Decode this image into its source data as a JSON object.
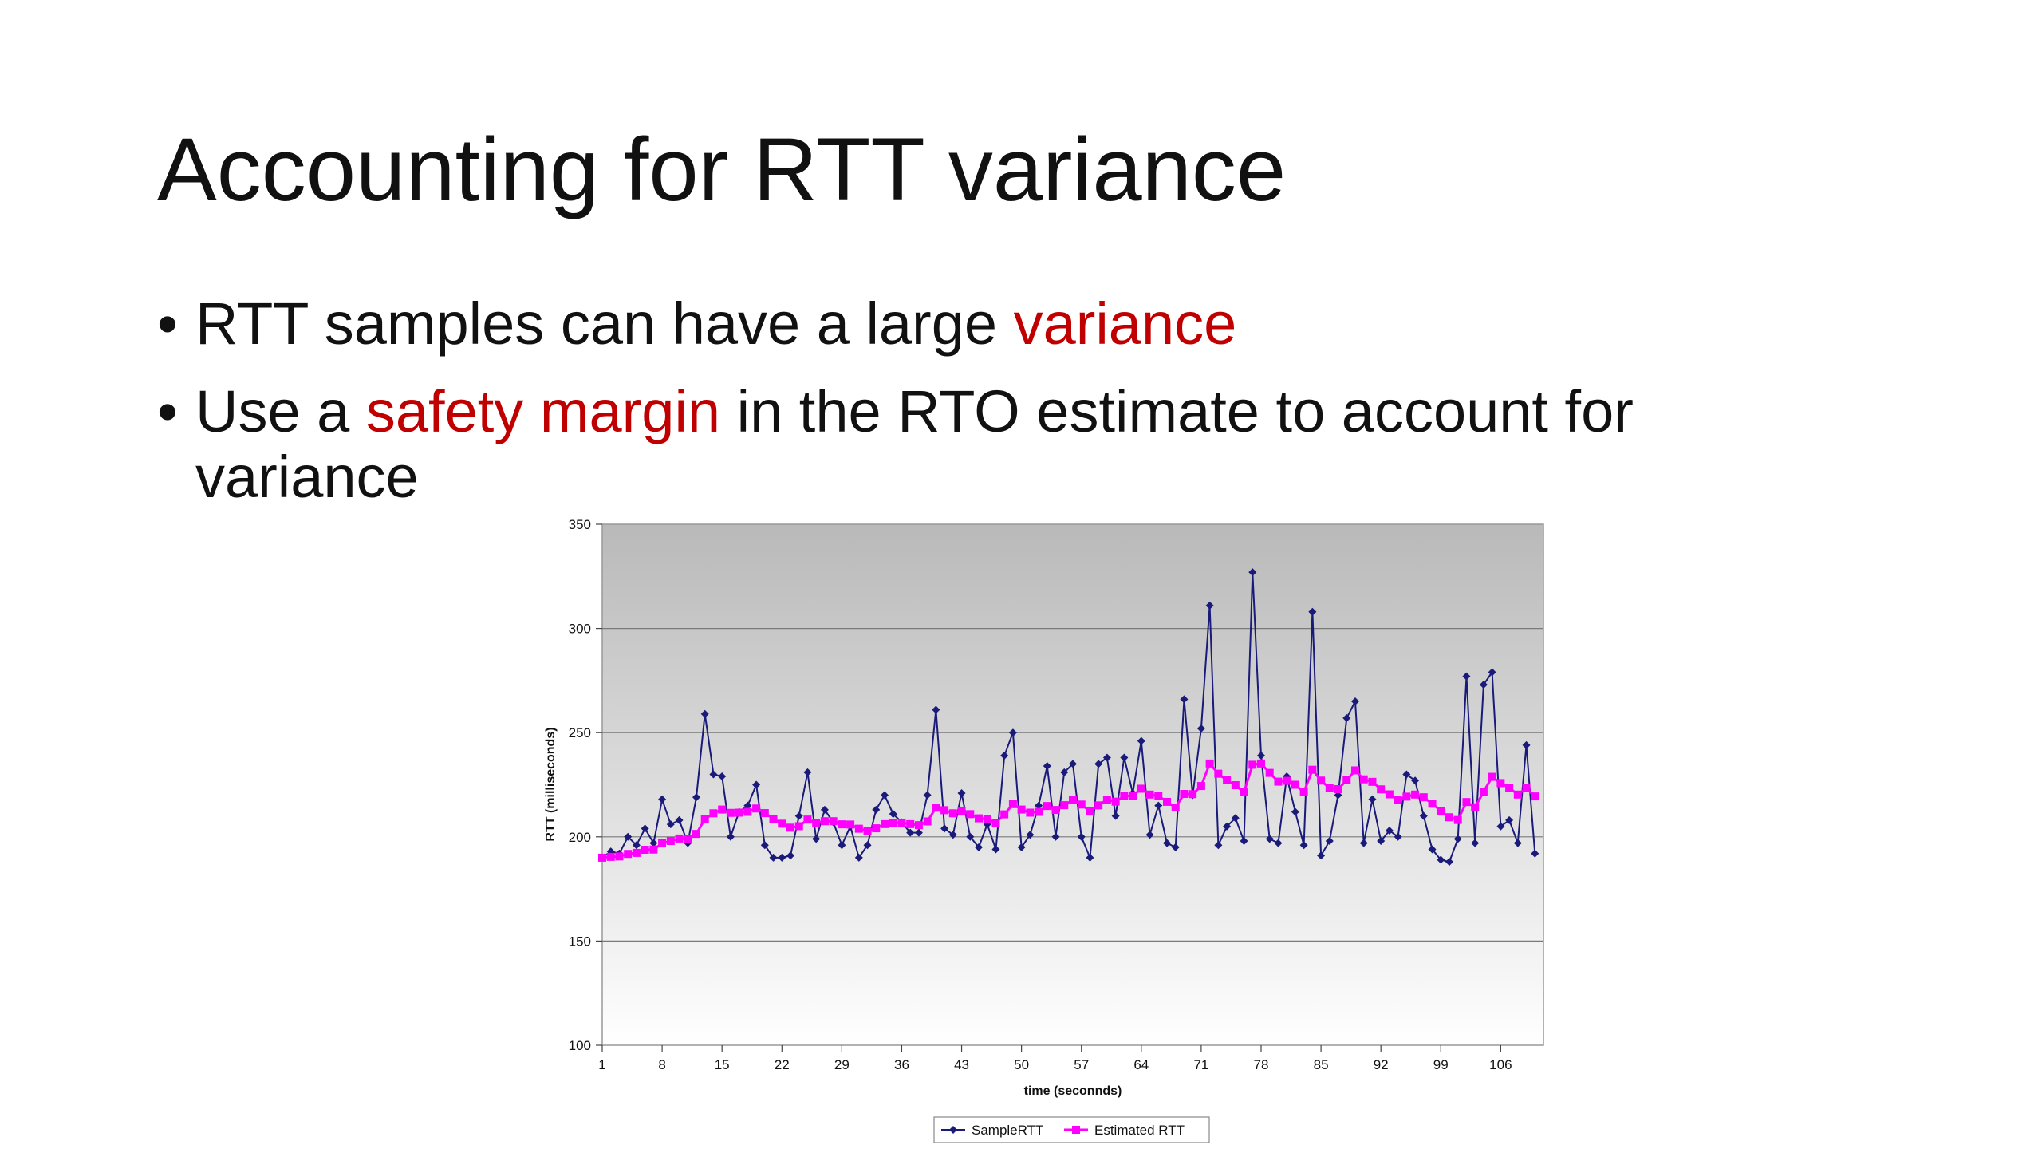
{
  "slide": {
    "title": "Accounting for RTT variance",
    "bullets": [
      {
        "before": "RTT samples can have a large ",
        "accent": "variance",
        "after": ""
      },
      {
        "before": "Use a ",
        "accent": "safety margin",
        "after": " in the RTO estimate to account for variance"
      }
    ]
  },
  "colors": {
    "accent": "#c00000",
    "sample_series": "#1a1a7a",
    "estimated_series": "#ff00ff"
  },
  "chart_data": {
    "type": "line",
    "title": "",
    "xlabel": "time (seconnds)",
    "ylabel": "RTT (milliseconds)",
    "ylim": [
      100,
      350
    ],
    "yticks": [
      100,
      150,
      200,
      250,
      300,
      350
    ],
    "xticks": [
      1,
      8,
      15,
      22,
      29,
      36,
      43,
      50,
      57,
      64,
      71,
      78,
      85,
      92,
      99,
      106
    ],
    "xrange": [
      1,
      111
    ],
    "legend_position": "bottom",
    "grid": true,
    "series": [
      {
        "name": "SampleRTT",
        "marker": "diamond",
        "values": [
          190,
          193,
          192,
          200,
          196,
          204,
          197,
          218,
          206,
          208,
          197,
          219,
          259,
          230,
          229,
          200,
          212,
          215,
          225,
          196,
          190,
          190,
          191,
          210,
          231,
          199,
          213,
          207,
          196,
          205,
          190,
          196,
          213,
          220,
          211,
          207,
          202,
          202,
          220,
          261,
          204,
          201,
          221,
          200,
          195,
          206,
          194,
          239,
          250,
          195,
          201,
          215,
          234,
          200,
          231,
          235,
          200,
          190,
          235,
          238,
          210,
          238,
          221,
          246,
          201,
          215,
          197,
          195,
          266,
          220,
          252,
          311,
          196,
          205,
          209,
          198,
          327,
          239,
          199,
          197,
          229,
          212,
          196,
          308,
          191,
          198,
          220,
          257,
          265,
          197,
          218,
          198,
          203,
          200,
          230,
          227,
          210,
          194,
          189,
          188,
          199,
          277,
          197,
          273,
          279,
          205,
          208,
          197,
          244,
          192
        ]
      },
      {
        "name": "Estimated RTT",
        "marker": "square",
        "values": [
          190,
          190.4,
          190.6,
          191.8,
          192.3,
          193.8,
          193.9,
          196.9,
          198.0,
          199.2,
          198.9,
          201.4,
          208.6,
          211.3,
          213.1,
          211.5,
          211.6,
          212.0,
          213.6,
          211.4,
          208.7,
          206.3,
          204.4,
          205.1,
          208.3,
          206.7,
          207.5,
          207.5,
          206.0,
          205.9,
          203.9,
          202.9,
          204.1,
          206.1,
          206.7,
          206.7,
          206.1,
          205.6,
          207.4,
          214.0,
          212.8,
          211.3,
          212.5,
          210.9,
          208.9,
          208.5,
          206.7,
          210.8,
          215.7,
          213.1,
          211.6,
          212.0,
          214.8,
          212.9,
          215.2,
          217.7,
          215.5,
          212.3,
          215.1,
          217.9,
          216.9,
          219.6,
          219.8,
          223.1,
          220.3,
          219.6,
          216.8,
          214.1,
          220.6,
          220.5,
          224.4,
          235.2,
          230.3,
          227.1,
          224.8,
          221.4,
          234.6,
          235.2,
          230.7,
          226.5,
          226.9,
          225.0,
          221.4,
          232.2,
          227.0,
          223.4,
          222.9,
          227.2,
          231.9,
          227.6,
          226.4,
          222.8,
          220.4,
          217.8,
          219.3,
          220.3,
          219.0,
          215.9,
          212.5,
          209.4,
          208.1,
          216.7,
          214.2,
          221.6,
          228.8,
          225.8,
          223.6,
          220.3,
          223.3,
          219.4
        ]
      }
    ]
  }
}
